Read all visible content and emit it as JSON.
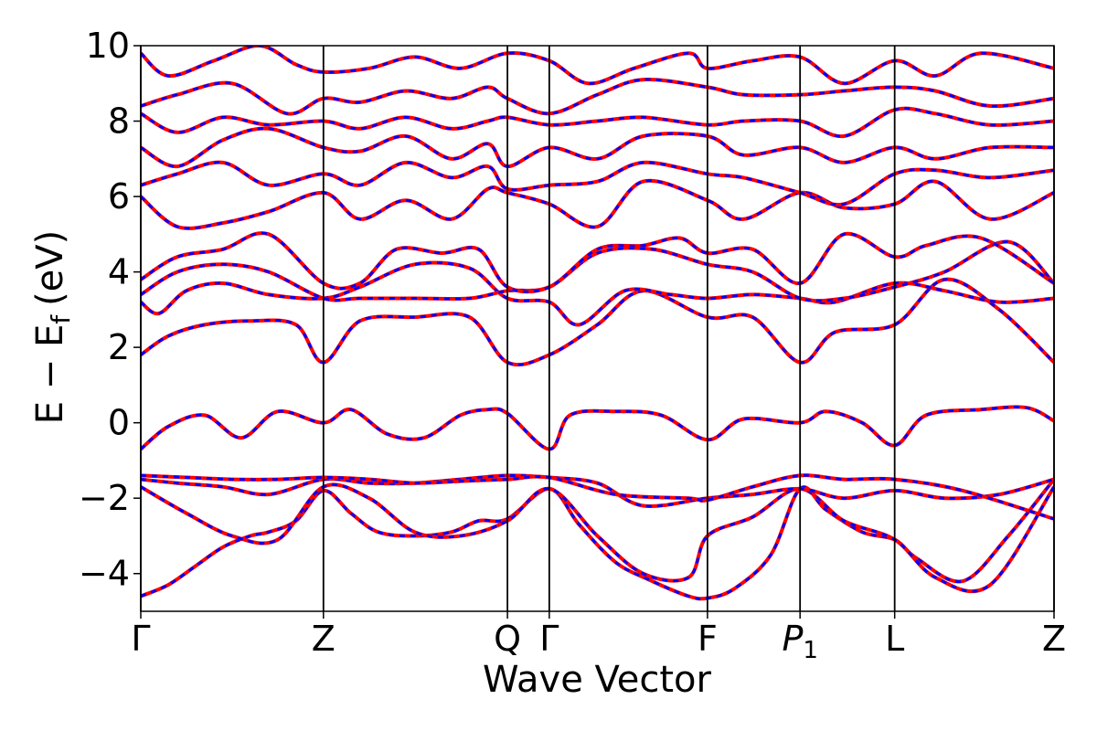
{
  "chart_data": {
    "type": "line",
    "xlabel": "Wave Vector",
    "ylabel": {
      "main": "E − E",
      "sub": "f",
      "unit": "(eV)"
    },
    "ylim": [
      -5,
      10
    ],
    "yticks": [
      -4,
      -2,
      0,
      2,
      4,
      6,
      8,
      10
    ],
    "ytick_labels": [
      "−4",
      "−2",
      "0",
      "2",
      "4",
      "6",
      "8",
      "10"
    ],
    "xlim": [
      0,
      1
    ],
    "kpoints": [
      {
        "label": "Γ",
        "sub": "",
        "x": 0.0
      },
      {
        "label": "Z",
        "sub": "",
        "x": 0.2
      },
      {
        "label": "Q",
        "sub": "",
        "x": 0.4015
      },
      {
        "label": "Γ",
        "sub": "",
        "x": 0.4473
      },
      {
        "label": "F",
        "sub": "",
        "x": 0.6205
      },
      {
        "label": "P",
        "sub": "1",
        "x": 0.7219
      },
      {
        "label": "L",
        "sub": "",
        "x": 0.8255
      },
      {
        "label": "Z",
        "sub": "",
        "x": 1.0
      }
    ],
    "grid": false,
    "style": {
      "line_color": "#ff0000",
      "dash_color": "#0000ff",
      "axis_color": "#000000"
    },
    "series": [
      {
        "x": [
          0,
          0.03,
          0.06,
          0.09,
          0.12,
          0.14,
          0.17,
          0.2,
          0.23,
          0.26,
          0.3,
          0.34,
          0.37,
          0.4015,
          0.4473,
          0.48,
          0.52,
          0.56,
          0.6,
          0.6205,
          0.65,
          0.69,
          0.7219,
          0.75,
          0.79,
          0.8255,
          0.85,
          0.9,
          0.95,
          1.0
        ],
        "y": [
          -4.6,
          -4.3,
          -3.8,
          -3.3,
          -3.0,
          -2.9,
          -2.6,
          -1.8,
          -2.4,
          -2.9,
          -3.0,
          -2.9,
          -2.6,
          -2.55,
          -1.75,
          -2.7,
          -3.7,
          -4.2,
          -4.6,
          -4.65,
          -4.4,
          -3.5,
          -1.75,
          -2.3,
          -2.9,
          -3.1,
          -3.6,
          -4.2,
          -3.0,
          -1.5
        ]
      },
      {
        "x": [
          0,
          0.05,
          0.1,
          0.15,
          0.2,
          0.25,
          0.3,
          0.35,
          0.4015,
          0.4473,
          0.5,
          0.55,
          0.6,
          0.6205,
          0.67,
          0.7219,
          0.77,
          0.8255,
          0.87,
          0.93,
          1.0
        ],
        "y": [
          -1.7,
          -2.4,
          -3.0,
          -3.1,
          -1.7,
          -2.0,
          -2.9,
          -3.0,
          -2.6,
          -1.75,
          -3.0,
          -4.0,
          -4.1,
          -3.0,
          -2.5,
          -1.75,
          -2.6,
          -3.1,
          -4.1,
          -4.3,
          -1.7
        ]
      },
      {
        "x": [
          0,
          0.04,
          0.09,
          0.14,
          0.2,
          0.25,
          0.3,
          0.35,
          0.4015,
          0.4473,
          0.5,
          0.55,
          0.6205,
          0.67,
          0.7219,
          0.77,
          0.8255,
          0.88,
          0.94,
          1.0
        ],
        "y": [
          -1.5,
          -1.6,
          -1.7,
          -1.9,
          -1.5,
          -1.6,
          -1.6,
          -1.5,
          -1.4,
          -1.45,
          -1.6,
          -2.2,
          -2.0,
          -1.9,
          -1.75,
          -2.0,
          -1.8,
          -2.0,
          -1.9,
          -1.5
        ]
      },
      {
        "x": [
          0,
          0.05,
          0.1,
          0.15,
          0.2,
          0.25,
          0.3,
          0.35,
          0.4015,
          0.4473,
          0.52,
          0.6,
          0.6205,
          0.67,
          0.7219,
          0.77,
          0.8255,
          0.9,
          1.0
        ],
        "y": [
          -1.4,
          -1.45,
          -1.5,
          -1.5,
          -1.45,
          -1.5,
          -1.6,
          -1.55,
          -1.5,
          -1.45,
          -1.9,
          -2.0,
          -2.05,
          -1.7,
          -1.4,
          -1.5,
          -1.5,
          -1.8,
          -2.55
        ]
      },
      {
        "x": [
          0,
          0.03,
          0.07,
          0.11,
          0.15,
          0.2,
          0.23,
          0.27,
          0.31,
          0.35,
          0.38,
          0.4015,
          0.4473,
          0.47,
          0.52,
          0.57,
          0.6205,
          0.66,
          0.7219,
          0.75,
          0.79,
          0.8255,
          0.86,
          0.92,
          0.97,
          1.0
        ],
        "y": [
          -0.7,
          -0.1,
          0.2,
          -0.4,
          0.3,
          0.0,
          0.35,
          -0.3,
          -0.4,
          0.2,
          0.35,
          0.25,
          -0.7,
          0.2,
          0.3,
          0.2,
          -0.45,
          0.1,
          0.0,
          0.3,
          0.0,
          -0.6,
          0.2,
          0.35,
          0.4,
          0.05
        ]
      },
      {
        "x": [
          0,
          0.03,
          0.07,
          0.12,
          0.17,
          0.2,
          0.24,
          0.3,
          0.36,
          0.4015,
          0.4473,
          0.5,
          0.55,
          0.6205,
          0.67,
          0.7219,
          0.76,
          0.8255,
          0.88,
          0.94,
          1.0
        ],
        "y": [
          1.8,
          2.3,
          2.6,
          2.7,
          2.6,
          1.6,
          2.7,
          2.8,
          2.8,
          1.6,
          1.8,
          2.6,
          3.5,
          2.8,
          2.8,
          1.6,
          2.4,
          2.6,
          3.8,
          3.0,
          1.6
        ]
      },
      {
        "x": [
          0,
          0.02,
          0.05,
          0.09,
          0.14,
          0.2,
          0.24,
          0.3,
          0.36,
          0.4015,
          0.4473,
          0.48,
          0.53,
          0.58,
          0.6205,
          0.67,
          0.7219,
          0.76,
          0.8255,
          0.88,
          0.94,
          1.0
        ],
        "y": [
          3.2,
          2.9,
          3.5,
          3.7,
          3.4,
          3.3,
          3.6,
          4.2,
          4.1,
          3.3,
          3.2,
          2.6,
          3.5,
          3.4,
          3.3,
          3.4,
          3.3,
          3.2,
          3.7,
          3.5,
          3.2,
          3.3
        ]
      },
      {
        "x": [
          0,
          0.04,
          0.09,
          0.14,
          0.2,
          0.24,
          0.3,
          0.36,
          0.4015,
          0.4473,
          0.5,
          0.56,
          0.6205,
          0.67,
          0.7219,
          0.77,
          0.8255,
          0.88,
          0.95,
          1.0
        ],
        "y": [
          3.4,
          4.0,
          4.2,
          4.0,
          3.3,
          3.3,
          3.3,
          3.3,
          3.5,
          3.6,
          4.5,
          4.6,
          4.2,
          4.0,
          3.3,
          3.3,
          3.6,
          4.0,
          4.8,
          3.7
        ]
      },
      {
        "x": [
          0,
          0.04,
          0.09,
          0.14,
          0.2,
          0.24,
          0.28,
          0.33,
          0.37,
          0.4015,
          0.4473,
          0.5,
          0.55,
          0.59,
          0.6205,
          0.67,
          0.7219,
          0.77,
          0.8255,
          0.86,
          0.92,
          1.0
        ],
        "y": [
          3.8,
          4.4,
          4.6,
          5.0,
          3.7,
          3.7,
          4.6,
          4.5,
          4.6,
          3.6,
          3.6,
          4.6,
          4.7,
          4.9,
          4.5,
          4.6,
          3.7,
          5.0,
          4.4,
          4.7,
          4.9,
          3.7
        ]
      },
      {
        "x": [
          0,
          0.04,
          0.09,
          0.14,
          0.2,
          0.24,
          0.29,
          0.34,
          0.38,
          0.4015,
          0.4473,
          0.5,
          0.55,
          0.6205,
          0.66,
          0.7219,
          0.77,
          0.8255,
          0.87,
          0.93,
          1.0
        ],
        "y": [
          6.0,
          5.2,
          5.3,
          5.6,
          6.1,
          5.4,
          5.9,
          5.4,
          6.2,
          6.1,
          5.8,
          5.2,
          6.4,
          5.9,
          5.4,
          6.1,
          5.7,
          5.8,
          6.4,
          5.4,
          6.1
        ]
      },
      {
        "x": [
          0,
          0.04,
          0.09,
          0.14,
          0.2,
          0.24,
          0.29,
          0.34,
          0.38,
          0.4015,
          0.4473,
          0.5,
          0.55,
          0.6205,
          0.66,
          0.7219,
          0.77,
          0.8255,
          0.87,
          0.93,
          1.0
        ],
        "y": [
          6.3,
          6.6,
          6.9,
          6.3,
          6.6,
          6.3,
          6.9,
          6.5,
          6.8,
          6.2,
          6.3,
          6.4,
          6.9,
          6.6,
          6.5,
          6.1,
          5.8,
          6.6,
          6.7,
          6.5,
          6.7
        ]
      },
      {
        "x": [
          0,
          0.04,
          0.09,
          0.14,
          0.2,
          0.24,
          0.29,
          0.34,
          0.38,
          0.4015,
          0.4473,
          0.5,
          0.55,
          0.6205,
          0.66,
          0.7219,
          0.77,
          0.8255,
          0.87,
          0.93,
          1.0
        ],
        "y": [
          7.3,
          6.8,
          7.5,
          7.8,
          7.3,
          7.2,
          7.6,
          7.0,
          7.4,
          6.8,
          7.3,
          7.0,
          7.6,
          7.6,
          7.1,
          7.3,
          6.9,
          7.3,
          7.0,
          7.3,
          7.3
        ]
      },
      {
        "x": [
          0,
          0.04,
          0.09,
          0.14,
          0.2,
          0.24,
          0.29,
          0.34,
          0.38,
          0.4015,
          0.4473,
          0.5,
          0.55,
          0.6205,
          0.66,
          0.7219,
          0.77,
          0.8255,
          0.87,
          0.93,
          1.0
        ],
        "y": [
          8.2,
          7.7,
          8.1,
          7.9,
          8.0,
          7.8,
          8.1,
          7.8,
          8.0,
          8.1,
          7.9,
          8.0,
          8.1,
          7.9,
          8.0,
          8.0,
          7.6,
          8.3,
          8.2,
          7.9,
          8.0
        ]
      },
      {
        "x": [
          0,
          0.04,
          0.1,
          0.16,
          0.2,
          0.24,
          0.29,
          0.34,
          0.38,
          0.4015,
          0.4473,
          0.5,
          0.55,
          0.6205,
          0.66,
          0.7219,
          0.77,
          0.8255,
          0.87,
          0.93,
          1.0
        ],
        "y": [
          8.4,
          8.7,
          9.0,
          8.2,
          8.6,
          8.5,
          8.8,
          8.6,
          8.9,
          8.6,
          8.2,
          8.7,
          9.1,
          8.9,
          8.7,
          8.7,
          8.8,
          8.9,
          8.8,
          8.4,
          8.6
        ]
      },
      {
        "x": [
          0,
          0.03,
          0.08,
          0.13,
          0.17,
          0.2,
          0.25,
          0.3,
          0.35,
          0.4015,
          0.4473,
          0.49,
          0.54,
          0.6,
          0.6205,
          0.67,
          0.7219,
          0.77,
          0.8255,
          0.87,
          0.92,
          1.0
        ],
        "y": [
          9.8,
          9.2,
          9.6,
          10.0,
          9.5,
          9.3,
          9.4,
          9.7,
          9.4,
          9.8,
          9.6,
          9.0,
          9.4,
          9.8,
          9.4,
          9.6,
          9.7,
          9.0,
          9.6,
          9.2,
          9.8,
          9.4
        ]
      }
    ]
  }
}
